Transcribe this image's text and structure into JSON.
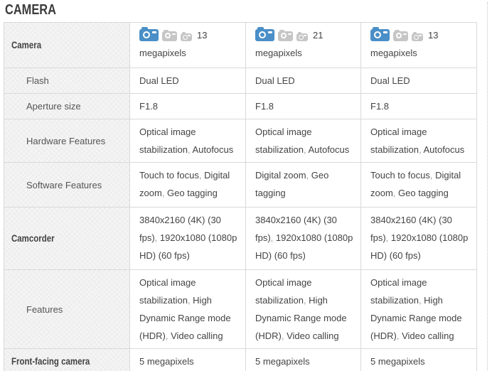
{
  "page": {
    "title": "CAMERA"
  },
  "colors": {
    "title_text": "#3c3c3c",
    "body_text": "#444444",
    "comma_muted": "#999999",
    "label_text": "#555555",
    "border": "#d9d9d9",
    "label_column_bg": "#f4f4f4",
    "camera_icon_blue": "#4a8fc7",
    "camera_icon_gray": "#c6c6c6"
  },
  "icons": {
    "camera_row": [
      {
        "name": "camera-primary-icon",
        "size": "s1",
        "color": "#4a8fc7"
      },
      {
        "name": "camera-secondary-icon",
        "size": "s2",
        "color": "#c6c6c6"
      },
      {
        "name": "camera-tertiary-icon",
        "size": "s3",
        "color": "#c6c6c6"
      }
    ]
  },
  "table": {
    "rows": [
      {
        "key": "camera",
        "label": "Camera",
        "bold": true,
        "type": "camera",
        "cells": [
          {
            "value": "13",
            "suffix": "megapixels"
          },
          {
            "value": "21",
            "suffix": "megapixels"
          },
          {
            "value": "13",
            "suffix": "megapixels"
          }
        ]
      },
      {
        "key": "flash",
        "label": "Flash",
        "bold": false,
        "cells": [
          [
            "Dual LED"
          ],
          [
            "Dual LED"
          ],
          [
            "Dual LED"
          ]
        ]
      },
      {
        "key": "aperture-size",
        "label": "Aperture size",
        "bold": false,
        "cells": [
          [
            "F1.8"
          ],
          [
            "F1.8"
          ],
          [
            "F1.8"
          ]
        ]
      },
      {
        "key": "hardware-features",
        "label": "Hardware Features",
        "bold": false,
        "cells": [
          [
            "Optical image stabilization",
            "Autofocus"
          ],
          [
            "Optical image stabilization",
            "Autofocus"
          ],
          [
            "Optical image stabilization",
            "Autofocus"
          ]
        ]
      },
      {
        "key": "software-features",
        "label": "Software Features",
        "bold": false,
        "cells": [
          [
            "Touch to focus",
            "Digital zoom",
            "Geo tagging"
          ],
          [
            "Digital zoom",
            "Geo tagging"
          ],
          [
            "Touch to focus",
            "Digital zoom",
            "Geo tagging"
          ]
        ]
      },
      {
        "key": "camcorder",
        "label": "Camcorder",
        "bold": true,
        "cells": [
          [
            "3840x2160 (4K) (30 fps)",
            "1920x1080 (1080p HD) (60 fps)"
          ],
          [
            "3840x2160 (4K) (30 fps)",
            "1920x1080 (1080p HD) (60 fps)"
          ],
          [
            "3840x2160 (4K) (30 fps)",
            "1920x1080 (1080p HD) (60 fps)"
          ]
        ]
      },
      {
        "key": "features",
        "label": "Features",
        "bold": false,
        "cells": [
          [
            "Optical image stabilization",
            "High Dynamic Range mode (HDR)",
            "Video calling"
          ],
          [
            "Optical image stabilization",
            "High Dynamic Range mode (HDR)",
            "Video calling"
          ],
          [
            "Optical image stabilization",
            "High Dynamic Range mode (HDR)",
            "Video calling"
          ]
        ]
      },
      {
        "key": "front-facing-camera",
        "label": "Front-facing camera",
        "bold": true,
        "cells": [
          [
            "5 megapixels"
          ],
          [
            "5 megapixels"
          ],
          [
            "5 megapixels"
          ]
        ]
      }
    ]
  }
}
